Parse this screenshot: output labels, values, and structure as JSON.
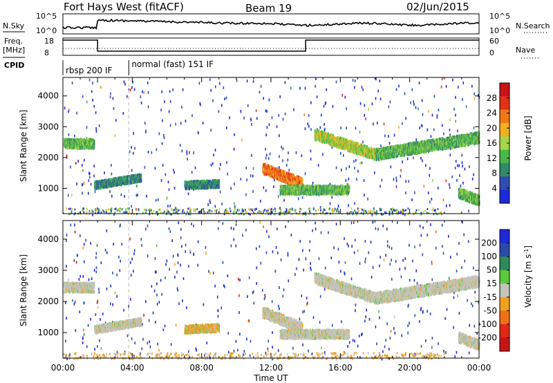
{
  "header": {
    "station": "Fort Hays West (fitACF)",
    "beam": "Beam 19",
    "date": "02/Jun/2015"
  },
  "summary_panels": {
    "nsky_label": "N.Sky",
    "freq_label_line1": "Freq.",
    "freq_label_line2": "[MHz]",
    "cpid_label": "CPID",
    "nsearch_label": "N.Search",
    "nave_label": "Nave",
    "noise_ticks": [
      "10^5",
      "10^0"
    ],
    "freq_ticks": [
      "18",
      "8"
    ],
    "nave_ticks": [
      "60",
      "0"
    ],
    "cpid_modes": [
      {
        "label": "rbsp 200 IF",
        "start_hour": 0.0,
        "end_hour": 3.8
      },
      {
        "label": "normal (fast) 151 IF",
        "start_hour": 3.8,
        "end_hour": 24.0
      }
    ]
  },
  "colors": {
    "power_scale": [
      "#1e2ad8",
      "#2f4db0",
      "#2f8a6a",
      "#48b848",
      "#a8d44a",
      "#f2b020",
      "#f07818",
      "#e43018",
      "#c81418"
    ],
    "velocity_scale": [
      "#1e2ad8",
      "#2b4aa8",
      "#2e8a5a",
      "#5cc83c",
      "#c4c4bc",
      "#f2a020",
      "#f07018",
      "#e02818",
      "#c81418"
    ]
  },
  "chart_data": [
    {
      "type": "heatmap",
      "panel": "power",
      "xlabel": "",
      "ylabel": "Slant Range [km]",
      "xlim": [
        0,
        24
      ],
      "ylim": [
        180,
        4600
      ],
      "y_ticks": [
        "4000",
        "3000",
        "2000",
        "1000"
      ],
      "colorbar_label": "Power [dB]",
      "colorbar_ticks": [
        "28",
        "24",
        "20",
        "16",
        "12",
        "8",
        "4"
      ],
      "colorbar_range": [
        0,
        30
      ],
      "echo_bands": [
        {
          "start_hour": 0.05,
          "end_hour": 1.8,
          "range_start": 2500,
          "range_end": 2500,
          "width": 280,
          "value": 9
        },
        {
          "start_hour": 1.8,
          "end_hour": 4.5,
          "range_start": 1150,
          "range_end": 1400,
          "width": 220,
          "value": 8
        },
        {
          "start_hour": 7.0,
          "end_hour": 9.0,
          "range_start": 1150,
          "range_end": 1200,
          "width": 220,
          "value": 7
        },
        {
          "start_hour": 11.5,
          "end_hour": 13.8,
          "range_start": 1700,
          "range_end": 1200,
          "width": 320,
          "value": 20
        },
        {
          "start_hour": 12.5,
          "end_hour": 16.5,
          "range_start": 1000,
          "range_end": 1000,
          "width": 260,
          "value": 9
        },
        {
          "start_hour": 14.5,
          "end_hour": 18.0,
          "range_start": 2800,
          "range_end": 2150,
          "width": 320,
          "value": 14
        },
        {
          "start_hour": 18.0,
          "end_hour": 24.0,
          "range_start": 2150,
          "range_end": 2700,
          "width": 340,
          "value": 9
        },
        {
          "start_hour": 22.8,
          "end_hour": 24.0,
          "range_start": 900,
          "range_end": 650,
          "width": 300,
          "value": 10
        }
      ]
    },
    {
      "type": "heatmap",
      "panel": "velocity",
      "xlabel": "Time UT",
      "ylabel": "Slant Range [km]",
      "xlim": [
        0,
        24
      ],
      "ylim": [
        180,
        4600
      ],
      "x_ticks": [
        "00:00",
        "04:00",
        "08:00",
        "12:00",
        "16:00",
        "20:00",
        "00:00"
      ],
      "y_ticks": [
        "4000",
        "3000",
        "2000",
        "1000"
      ],
      "colorbar_label": "Velocity [m s^-1]",
      "colorbar_ticks": [
        "200",
        "100",
        "50",
        "15",
        "-15",
        "-50",
        "-100",
        "-200"
      ],
      "echo_bands": [
        {
          "start_hour": 0.05,
          "end_hour": 1.8,
          "range_start": 2500,
          "range_end": 2500,
          "width": 280,
          "value": 0
        },
        {
          "start_hour": 1.8,
          "end_hour": 4.5,
          "range_start": 1150,
          "range_end": 1400,
          "width": 220,
          "value": 0
        },
        {
          "start_hour": 7.0,
          "end_hour": 9.0,
          "range_start": 1150,
          "range_end": 1200,
          "width": 220,
          "value": -40
        },
        {
          "start_hour": 11.5,
          "end_hour": 13.8,
          "range_start": 1700,
          "range_end": 1200,
          "width": 320,
          "value": 0
        },
        {
          "start_hour": 12.5,
          "end_hour": 16.5,
          "range_start": 1000,
          "range_end": 1000,
          "width": 260,
          "value": 0
        },
        {
          "start_hour": 14.5,
          "end_hour": 18.0,
          "range_start": 2800,
          "range_end": 2150,
          "width": 320,
          "value": 0
        },
        {
          "start_hour": 18.0,
          "end_hour": 24.0,
          "range_start": 2150,
          "range_end": 2700,
          "width": 340,
          "value": 0
        },
        {
          "start_hour": 22.8,
          "end_hour": 24.0,
          "range_start": 900,
          "range_end": 650,
          "width": 300,
          "value": 0
        }
      ]
    }
  ]
}
